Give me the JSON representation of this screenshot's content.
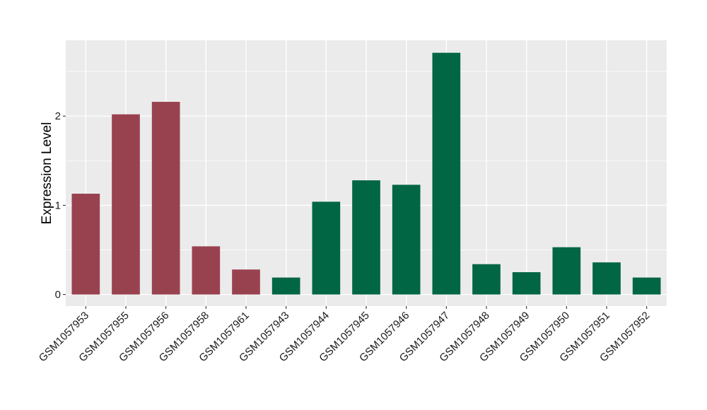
{
  "chart_data": {
    "type": "bar",
    "title": "",
    "xlabel": "",
    "ylabel": "Expression Level",
    "ylim": [
      -0.13,
      2.85
    ],
    "yticks": [
      0,
      1,
      2
    ],
    "grid": true,
    "legend": "none",
    "categories": [
      "GSM1057953",
      "GSM1057955",
      "GSM1057956",
      "GSM1057958",
      "GSM1057961",
      "GSM1057943",
      "GSM1057944",
      "GSM1057945",
      "GSM1057946",
      "GSM1057947",
      "GSM1057948",
      "GSM1057949",
      "GSM1057950",
      "GSM1057951",
      "GSM1057952"
    ],
    "values": [
      1.13,
      2.02,
      2.16,
      0.54,
      0.28,
      0.19,
      1.04,
      1.28,
      1.23,
      2.71,
      0.34,
      0.25,
      0.53,
      0.36,
      0.19
    ],
    "groups": [
      "a",
      "a",
      "a",
      "a",
      "a",
      "b",
      "b",
      "b",
      "b",
      "b",
      "b",
      "b",
      "b",
      "b",
      "b"
    ],
    "colors": {
      "a": "#99424f",
      "b": "#006644"
    },
    "panel_background": "#ebebeb",
    "grid_color": "#ffffff"
  }
}
